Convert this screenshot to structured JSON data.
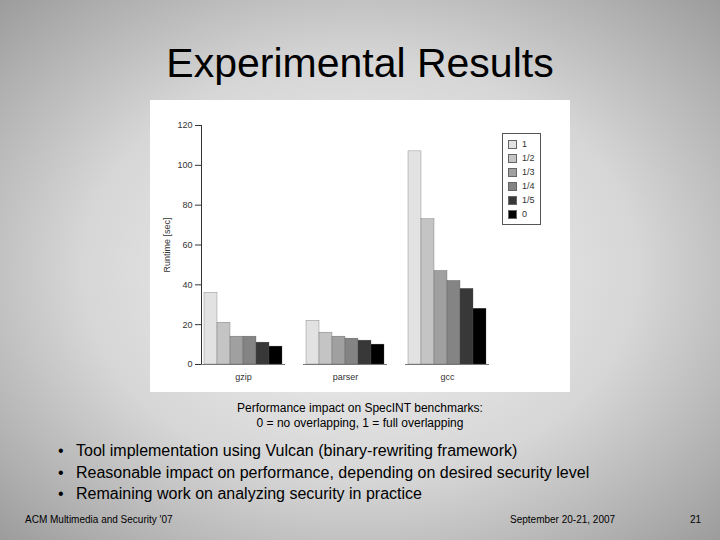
{
  "chart_data": {
    "type": "bar",
    "y_label": "Runtime [sec]",
    "categories": [
      "gzip",
      "parser",
      "gcc"
    ],
    "series": [
      {
        "name": "1",
        "color": "#e2e2e2",
        "values": [
          36,
          22,
          107
        ]
      },
      {
        "name": "1/2",
        "color": "#c4c4c4",
        "values": [
          21,
          16,
          73
        ]
      },
      {
        "name": "1/3",
        "color": "#a0a0a0",
        "values": [
          14,
          14,
          47
        ]
      },
      {
        "name": "1/4",
        "color": "#848484",
        "values": [
          14,
          13,
          42
        ]
      },
      {
        "name": "1/5",
        "color": "#383838",
        "values": [
          11,
          12,
          38
        ]
      },
      {
        "name": "0",
        "color": "#000000",
        "values": [
          9,
          10,
          28
        ]
      }
    ],
    "ylim": [
      0,
      120
    ],
    "yticks": [
      0,
      20,
      40,
      60,
      80,
      100,
      120
    ],
    "grid": false,
    "legend": "right"
  },
  "slide": {
    "title": "Experimental Results",
    "caption": [
      "Performance impact on SpecINT benchmarks:",
      "0 = no overlapping, 1 = full overlapping"
    ],
    "bullets": [
      "Tool implementation using Vulcan (binary-rewriting framework)",
      "Reasonable impact on performance, depending on desired security level",
      "Remaining work on analyzing security in practice"
    ],
    "footer_left": "ACM Multimedia and Security '07",
    "footer_date": "September 20-21, 2007",
    "page": "21"
  }
}
